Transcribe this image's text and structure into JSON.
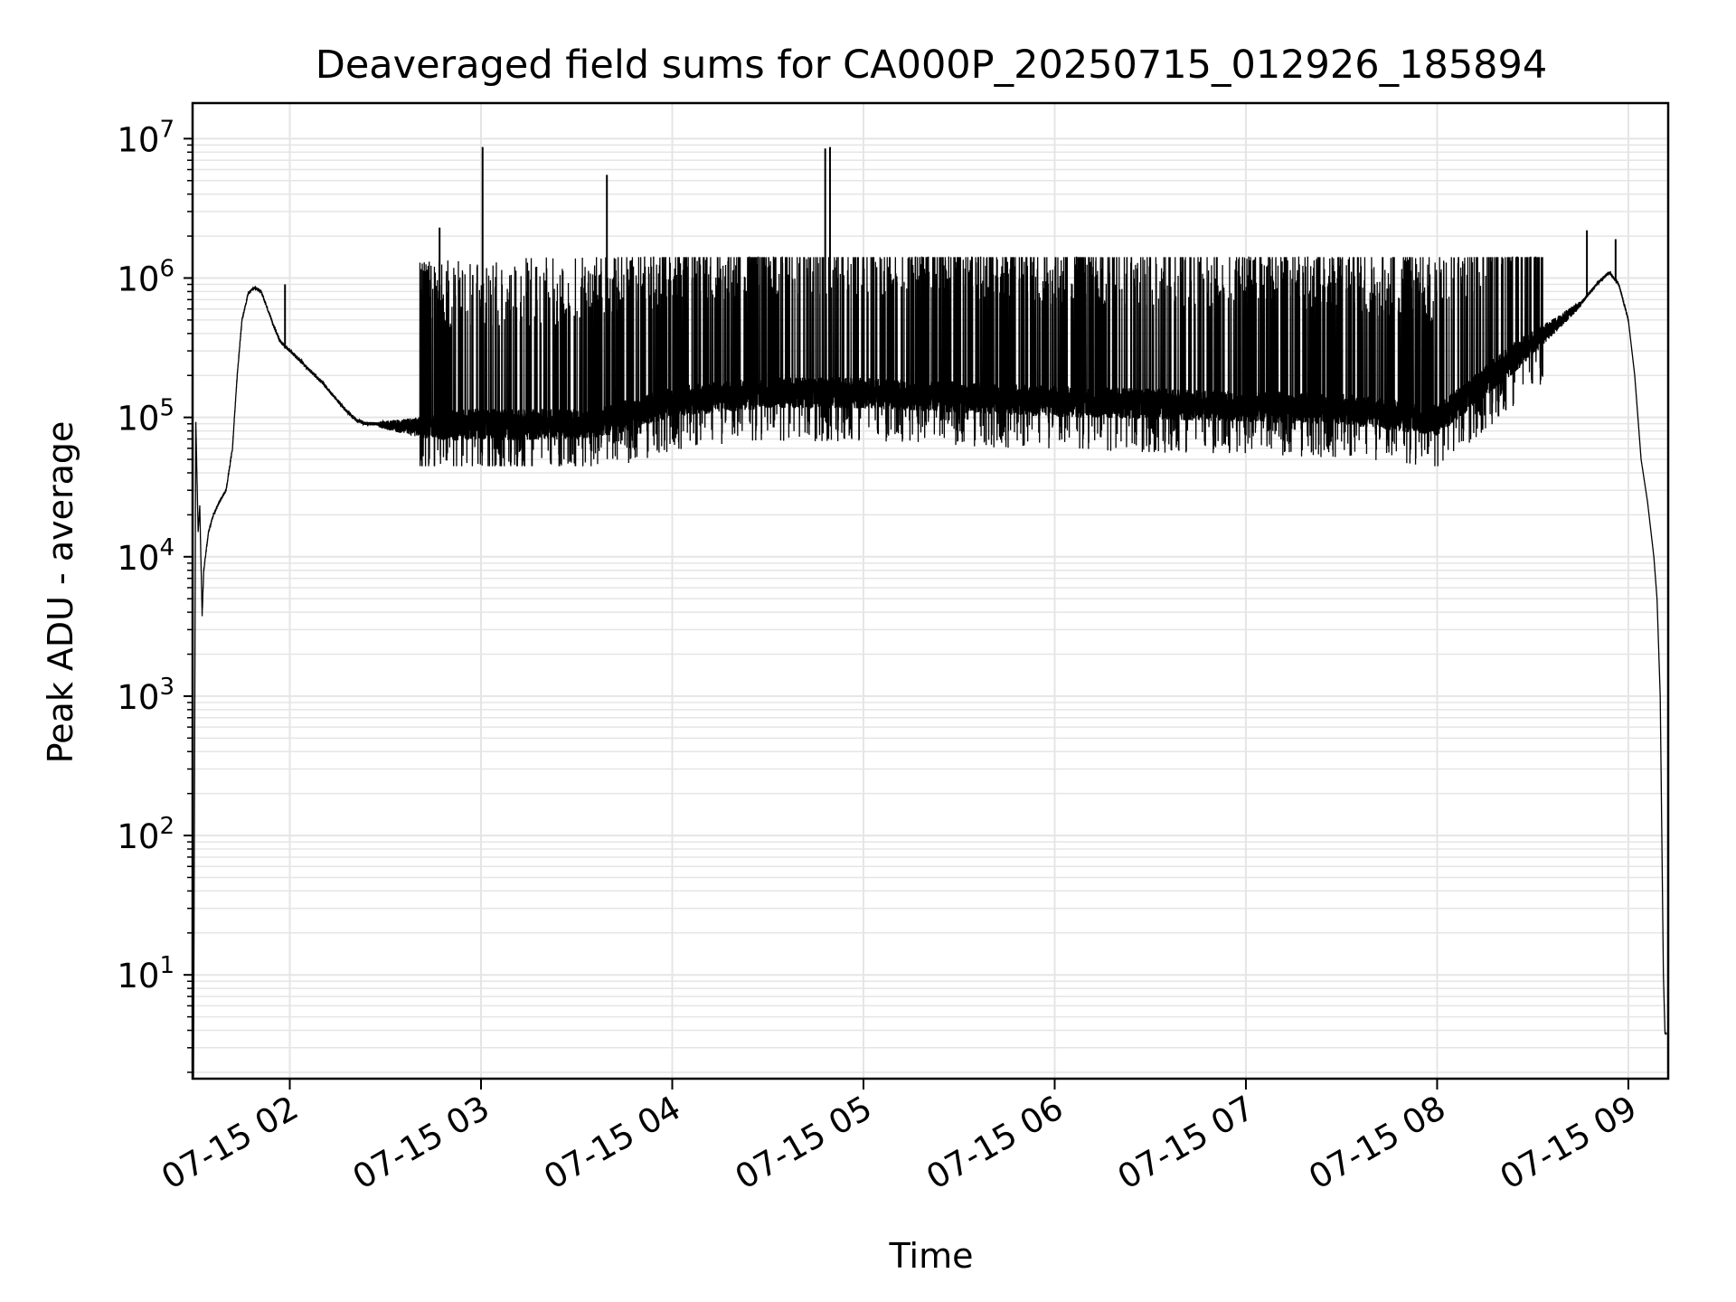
{
  "chart_data": {
    "type": "line",
    "title": "Deaveraged field sums for CA000P_20250715_012926_185894",
    "xlabel": "Time",
    "ylabel": "Peak ADU - average",
    "yscale": "log",
    "ylim": [
      1.8,
      18000000
    ],
    "xlim": [
      "07-15 01:29:30",
      "07-15 09:12:30"
    ],
    "grid": true,
    "legend": "none",
    "line_color": "#000000",
    "grid_color": "#e5e5e5",
    "x_ticks": [
      {
        "time": "07-15 02:00",
        "label": "07-15 02"
      },
      {
        "time": "07-15 03:00",
        "label": "07-15 03"
      },
      {
        "time": "07-15 04:00",
        "label": "07-15 04"
      },
      {
        "time": "07-15 05:00",
        "label": "07-15 05"
      },
      {
        "time": "07-15 06:00",
        "label": "07-15 06"
      },
      {
        "time": "07-15 07:00",
        "label": "07-15 07"
      },
      {
        "time": "07-15 08:00",
        "label": "07-15 08"
      },
      {
        "time": "07-15 09:00",
        "label": "07-15 09"
      }
    ],
    "y_ticks": [
      {
        "value": 10,
        "base": "10",
        "exp": "1"
      },
      {
        "value": 100,
        "base": "10",
        "exp": "2"
      },
      {
        "value": 1000,
        "base": "10",
        "exp": "3"
      },
      {
        "value": 10000,
        "base": "10",
        "exp": "4"
      },
      {
        "value": 100000,
        "base": "10",
        "exp": "5"
      },
      {
        "value": 1000000,
        "base": "10",
        "exp": "6"
      },
      {
        "value": 10000000,
        "base": "10",
        "exp": "7"
      }
    ],
    "series": [
      {
        "x": [
          "07-15 01:29:48",
          "07-15 01:30:30",
          "07-15 01:31:15",
          "07-15 01:31:45",
          "07-15 01:32:30",
          "07-15 01:33:00",
          "07-15 01:34:30",
          "07-15 01:36:00",
          "07-15 01:38:00",
          "07-15 01:40:00",
          "07-15 01:42:00",
          "07-15 01:43:30",
          "07-15 01:45:00",
          "07-15 01:47:00",
          "07-15 01:49:00",
          "07-15 01:51:00",
          "07-15 01:53:00",
          "07-15 01:55:00",
          "07-15 01:57:00",
          "07-15 02:00:00",
          "07-15 02:03:00",
          "07-15 02:06:00",
          "07-15 02:10:00",
          "07-15 02:14:00",
          "07-15 02:18:00",
          "07-15 02:21:00",
          "07-15 02:24:00",
          "07-15 02:27:00",
          "07-15 02:30:00",
          "07-15 02:40:00",
          "07-15 02:50:00",
          "07-15 03:00:00",
          "07-15 03:10:00",
          "07-15 03:20:00",
          "07-15 03:30:00",
          "07-15 03:40:00",
          "07-15 03:50:00",
          "07-15 04:00:00",
          "07-15 04:30:00",
          "07-15 05:00:00",
          "07-15 05:30:00",
          "07-15 06:00:00",
          "07-15 06:30:00",
          "07-15 07:00:00",
          "07-15 07:30:00",
          "07-15 08:00:00",
          "07-15 08:15:00",
          "07-15 08:25:00",
          "07-15 08:35:00",
          "07-15 08:45:00",
          "07-15 08:50:00",
          "07-15 08:54:00",
          "07-15 08:57:00",
          "07-15 09:00:00",
          "07-15 09:02:00",
          "07-15 09:04:00",
          "07-15 09:06:00",
          "07-15 09:08:00",
          "07-15 09:09:00",
          "07-15 09:10:00",
          "07-15 09:10:30",
          "07-15 09:11:00",
          "07-15 09:11:30",
          "07-15 09:12:00"
        ],
        "y": [
          1.8,
          95000,
          15000,
          23000,
          3800,
          8000,
          15000,
          20000,
          25000,
          30000,
          60000,
          200000,
          500000,
          780000,
          850000,
          800000,
          600000,
          450000,
          350000,
          300000,
          260000,
          220000,
          180000,
          140000,
          110000,
          95000,
          90000,
          90000,
          88000,
          85000,
          87000,
          90000,
          88000,
          90000,
          90000,
          95000,
          110000,
          130000,
          150000,
          150000,
          140000,
          130000,
          125000,
          120000,
          115000,
          95000,
          180000,
          280000,
          420000,
          650000,
          900000,
          1100000,
          900000,
          500000,
          200000,
          50000,
          25000,
          10000,
          5000,
          1000,
          100,
          10,
          3.8,
          3.8
        ]
      }
    ],
    "spikes": [
      {
        "x": "07-15 01:58:30",
        "y": 900000
      },
      {
        "x": "07-15 02:47:00",
        "y": 2300000
      },
      {
        "x": "07-15 03:00:30",
        "y": 8700000
      },
      {
        "x": "07-15 03:39:30",
        "y": 5500000
      },
      {
        "x": "07-15 04:48:00",
        "y": 8500000
      },
      {
        "x": "07-15 04:49:30",
        "y": 8700000
      },
      {
        "x": "07-15 08:47:00",
        "y": 2200000
      },
      {
        "x": "07-15 08:56:00",
        "y": 1900000
      }
    ]
  }
}
